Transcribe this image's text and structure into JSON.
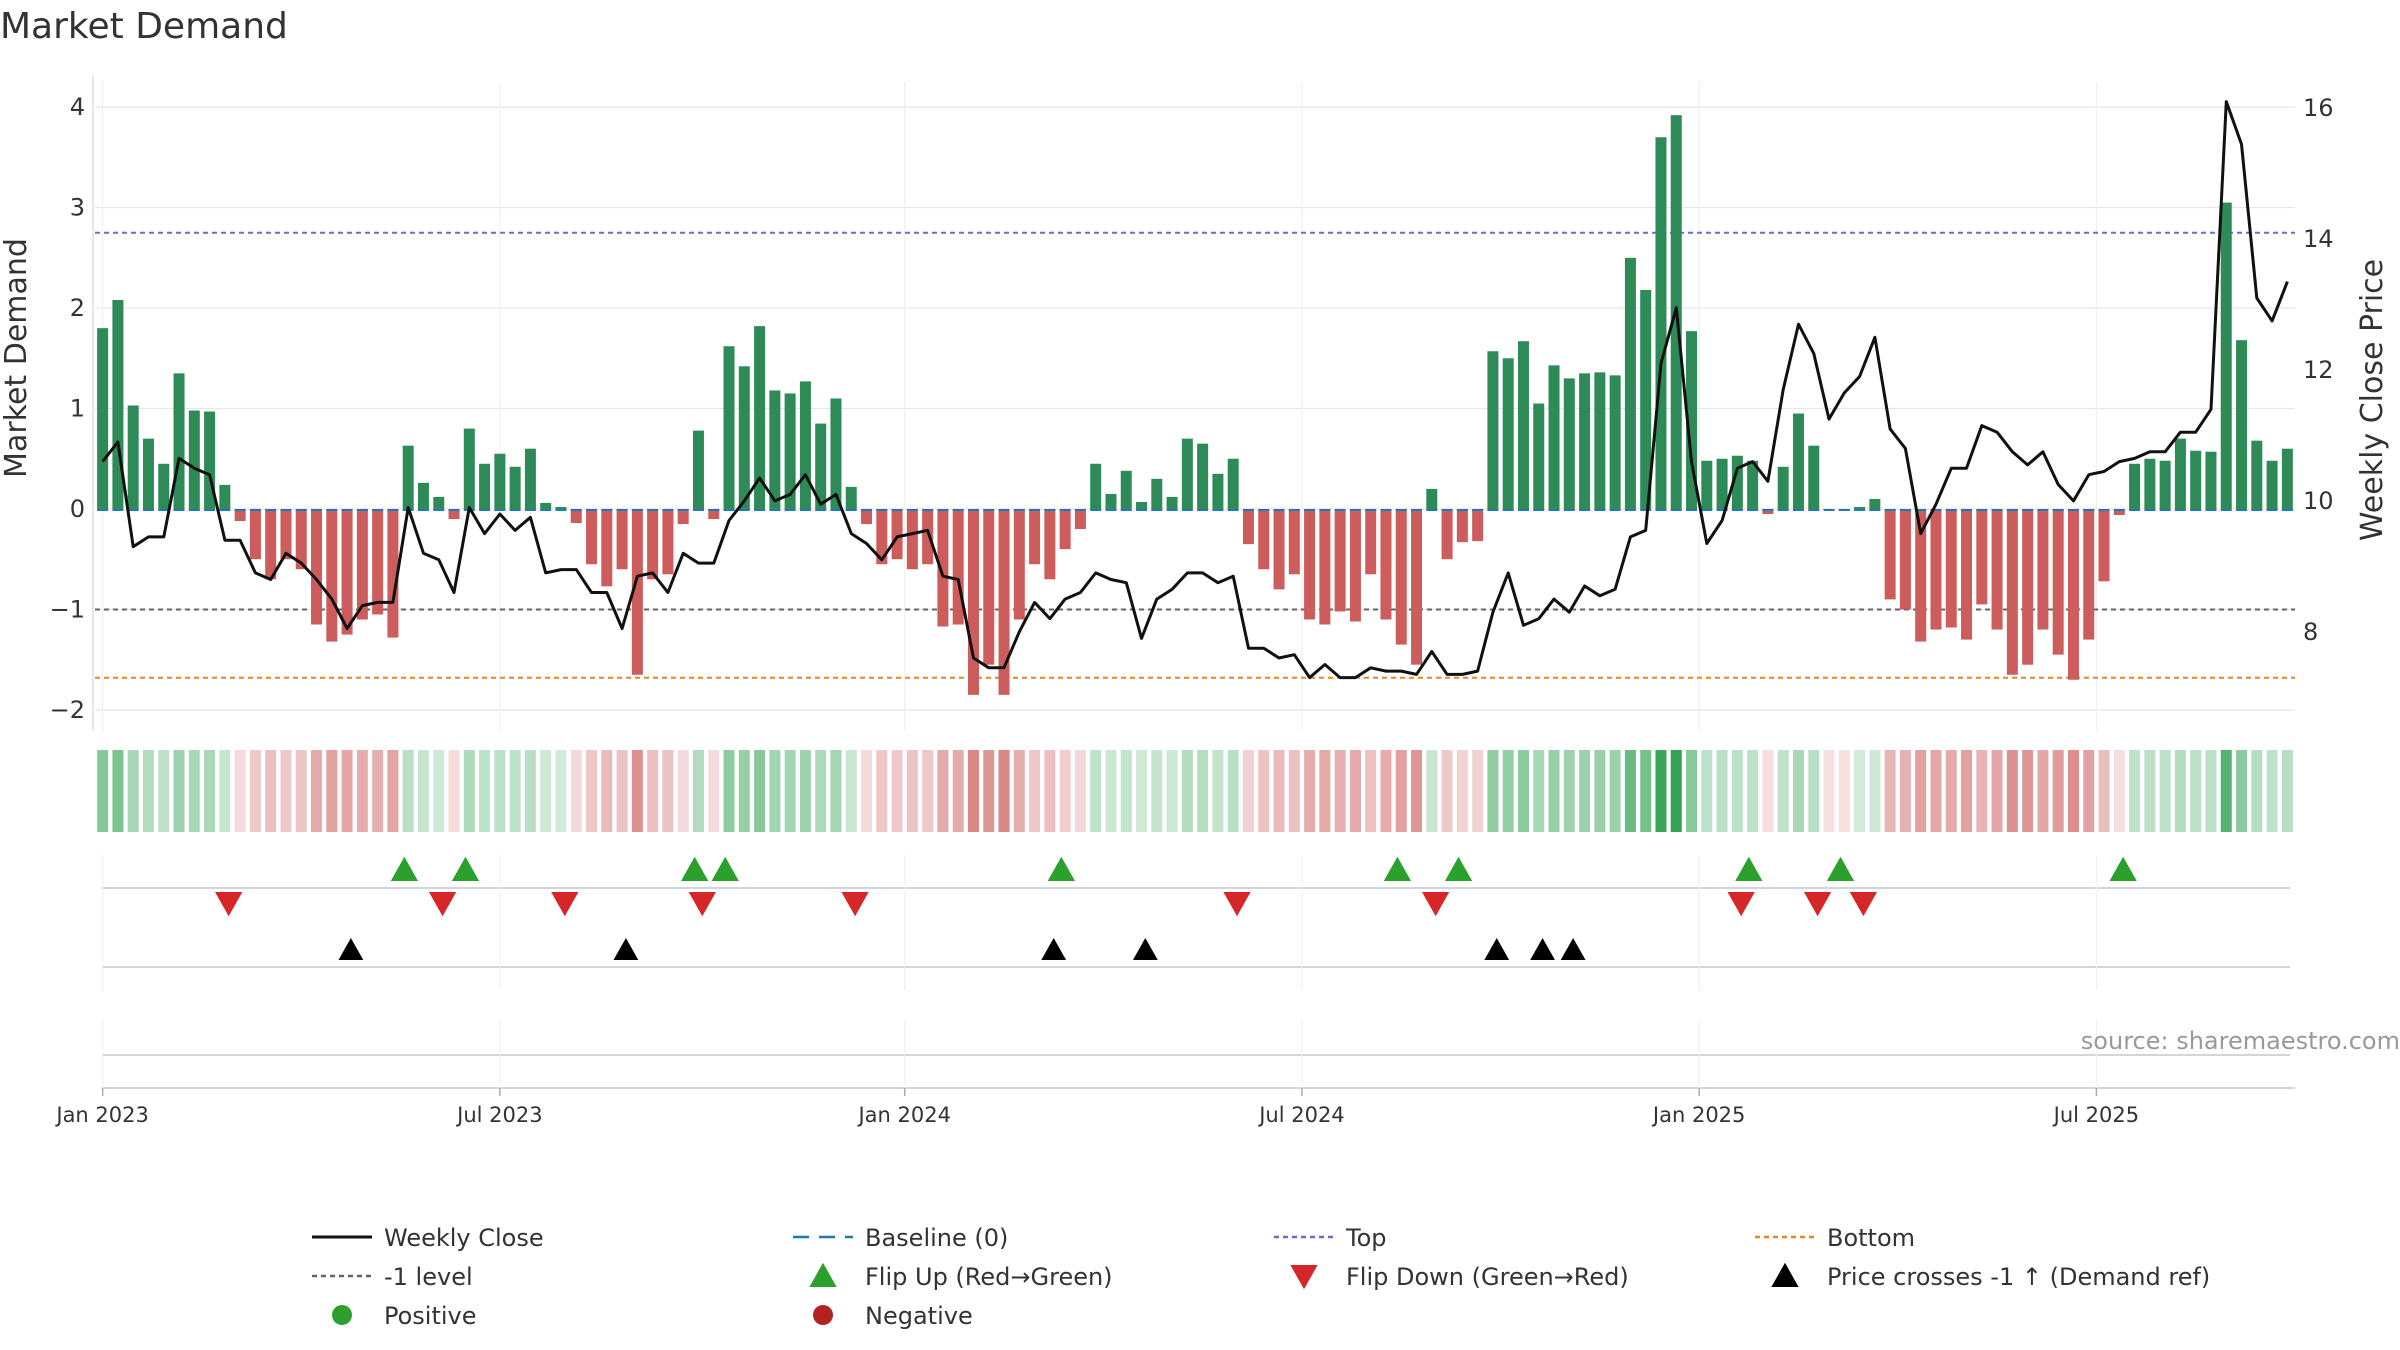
{
  "chart_data": {
    "type": "bar",
    "title": "Market Demand",
    "ylabel_left": "Market Demand",
    "ylabel_right": "Weekly Close Price",
    "ylim_left": [
      -2.2,
      4.25
    ],
    "ylim_right": [
      6.5,
      16.4
    ],
    "left_ticks": [
      4,
      3,
      2,
      1,
      0,
      -1,
      -2
    ],
    "left_tick_labels": [
      "4",
      "3",
      "2",
      "1",
      "0",
      "−1",
      "−2"
    ],
    "right_ticks": [
      16,
      14,
      12,
      10,
      8
    ],
    "right_tick_labels": [
      "16",
      "14",
      "12",
      "10",
      "8"
    ],
    "x_tick_weeks": [
      0,
      26,
      52.5,
      78.5,
      104.5,
      130.5
    ],
    "x_tick_labels": [
      "Jan 2023",
      "Jul 2023",
      "Jan 2024",
      "Jul 2024",
      "Jan 2025",
      "Jul 2025"
    ],
    "reference_lines": {
      "baseline": 0,
      "top": 2.75,
      "bottom": -1.68,
      "minus_one": -1
    },
    "demand": [
      1.8,
      2.08,
      1.03,
      0.7,
      0.45,
      1.35,
      0.98,
      0.97,
      0.24,
      -0.12,
      -0.5,
      -0.7,
      -0.5,
      -0.6,
      -1.15,
      -1.32,
      -1.25,
      -1.1,
      -1.05,
      -1.28,
      0.63,
      0.26,
      0.12,
      -0.1,
      0.8,
      0.45,
      0.55,
      0.42,
      0.6,
      0.06,
      0.02,
      -0.14,
      -0.55,
      -0.77,
      -0.6,
      -1.65,
      -0.7,
      -0.65,
      -0.15,
      0.78,
      -0.1,
      1.62,
      1.42,
      1.82,
      1.18,
      1.15,
      1.27,
      0.85,
      1.1,
      0.22,
      -0.15,
      -0.55,
      -0.5,
      -0.6,
      -0.55,
      -1.17,
      -1.15,
      -1.85,
      -1.55,
      -1.85,
      -1.1,
      -0.55,
      -0.7,
      -0.4,
      -0.2,
      0.45,
      0.15,
      0.38,
      0.07,
      0.3,
      0.12,
      0.7,
      0.65,
      0.35,
      0.5,
      -0.35,
      -0.6,
      -0.8,
      -0.65,
      -1.1,
      -1.15,
      -1.02,
      -1.12,
      -0.65,
      -1.1,
      -1.35,
      -1.55,
      0.2,
      -0.5,
      -0.33,
      -0.32,
      1.57,
      1.5,
      1.67,
      1.05,
      1.43,
      1.3,
      1.35,
      1.36,
      1.33,
      2.5,
      2.18,
      3.7,
      3.92,
      1.77,
      0.48,
      0.5,
      0.53,
      0.48,
      -0.05,
      0.42,
      0.95,
      0.63,
      -0.02,
      -0.02,
      0.02,
      0.1,
      -0.9,
      -1.0,
      -1.32,
      -1.2,
      -1.18,
      -1.3,
      -0.95,
      -1.2,
      -1.65,
      -1.55,
      -1.2,
      -1.45,
      -1.7,
      -1.3,
      -0.72,
      -0.06,
      0.45,
      0.5,
      0.48,
      0.7,
      0.58,
      0.57,
      3.05,
      1.68,
      0.68,
      0.48,
      0.6
    ],
    "close": [
      10.6,
      10.9,
      9.3,
      9.45,
      9.45,
      10.65,
      10.5,
      10.4,
      9.4,
      9.4,
      8.9,
      8.8,
      9.2,
      9.05,
      8.8,
      8.5,
      8.05,
      8.4,
      8.45,
      8.45,
      9.9,
      9.2,
      9.1,
      8.6,
      9.9,
      9.5,
      9.8,
      9.55,
      9.75,
      8.9,
      8.95,
      8.95,
      8.6,
      8.6,
      8.05,
      8.85,
      8.9,
      8.6,
      9.2,
      9.05,
      9.05,
      9.7,
      10.0,
      10.35,
      10.0,
      10.1,
      10.4,
      9.95,
      10.1,
      9.5,
      9.35,
      9.1,
      9.45,
      9.5,
      9.55,
      8.85,
      8.8,
      7.6,
      7.45,
      7.45,
      8.0,
      8.45,
      8.2,
      8.5,
      8.6,
      8.9,
      8.8,
      8.75,
      7.9,
      8.5,
      8.65,
      8.9,
      8.9,
      8.75,
      8.85,
      7.75,
      7.75,
      7.6,
      7.65,
      7.3,
      7.5,
      7.3,
      7.3,
      7.45,
      7.4,
      7.4,
      7.35,
      7.7,
      7.35,
      7.35,
      7.4,
      8.3,
      8.9,
      8.1,
      8.2,
      8.5,
      8.3,
      8.7,
      8.55,
      8.65,
      9.45,
      9.55,
      12.1,
      12.95,
      10.6,
      9.35,
      9.7,
      10.5,
      10.6,
      10.3,
      11.7,
      12.7,
      12.25,
      11.25,
      11.65,
      11.9,
      12.5,
      11.1,
      10.8,
      9.5,
      9.95,
      10.5,
      10.5,
      11.15,
      11.05,
      10.75,
      10.55,
      10.75,
      10.25,
      10.0,
      10.4,
      10.45,
      10.6,
      10.65,
      10.75,
      10.75,
      11.05,
      11.05,
      11.4,
      16.1,
      15.45,
      13.1,
      12.75,
      13.35
    ],
    "flip_up_weeks": [
      19.75,
      23.75,
      38.75,
      40.75,
      62.75,
      84.75,
      88.75,
      107.75,
      113.75,
      132.25
    ],
    "flip_down_weeks": [
      8.25,
      22.25,
      30.25,
      39.25,
      49.25,
      74.25,
      87.25,
      107.25,
      112.25,
      115.25
    ],
    "price_cross_weeks": [
      16.25,
      34.25,
      62.25,
      68.25,
      91.25,
      94.25,
      96.25
    ],
    "source_label": "source: sharemaestro.com",
    "legend": [
      {
        "label": "Weekly Close",
        "marker": "line-solid",
        "color": "#111111"
      },
      {
        "label": "Baseline (0)",
        "marker": "line-dash",
        "color": "#1f77b4"
      },
      {
        "label": "Top",
        "marker": "line-dot",
        "color": "#6b6bd6"
      },
      {
        "label": "Bottom",
        "marker": "line-dot",
        "color": "#e08a1e"
      },
      {
        "label": "-1 level",
        "marker": "line-dot",
        "color": "#666666"
      },
      {
        "label": "Flip Up (Red→Green)",
        "marker": "triangle-up",
        "color": "#2ca02c"
      },
      {
        "label": "Flip Down (Green→Red)",
        "marker": "triangle-down",
        "color": "#d62728"
      },
      {
        "label": "Price crosses -1 ↑ (Demand ref)",
        "marker": "triangle-up",
        "color": "#000000"
      },
      {
        "label": "Positive",
        "marker": "circle",
        "color": "#2ca02c"
      },
      {
        "label": "Negative",
        "marker": "circle",
        "color": "#b22222"
      }
    ],
    "colors": {
      "positive_bar": "#2e8b57",
      "negative_bar": "#cd5c5c",
      "close_line": "#111111",
      "baseline": "#1f77b4",
      "top_line": "#6b6bd6",
      "bottom_line": "#e08a1e",
      "minus_one_line": "#666666",
      "flip_up": "#2ca02c",
      "flip_down": "#d62728",
      "price_cross": "#000000",
      "grid": "#e6e6e6"
    }
  }
}
